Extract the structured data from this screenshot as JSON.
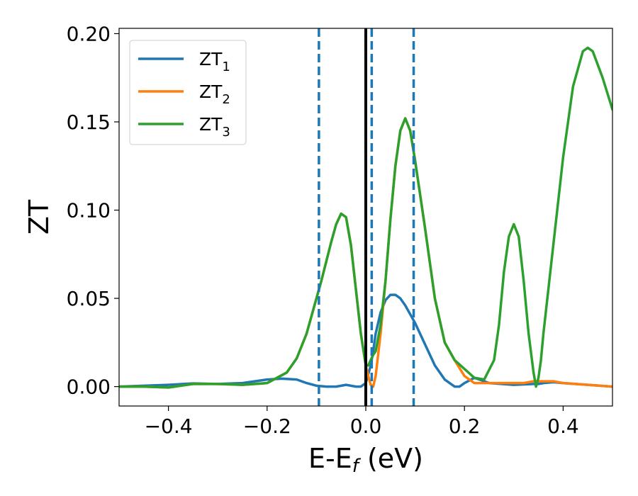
{
  "chart_data": {
    "type": "line",
    "xlabel": "E-E_f (eV)",
    "ylabel": "ZT",
    "xlim": [
      -0.5,
      0.5
    ],
    "ylim": [
      -0.011,
      0.203
    ],
    "x_ticks": [
      -0.4,
      -0.2,
      0.0,
      0.2,
      0.4
    ],
    "x_tick_labels": [
      "−0.4",
      "−0.2",
      "0.0",
      "0.2",
      "0.4"
    ],
    "y_ticks": [
      0.0,
      0.05,
      0.1,
      0.15,
      0.2
    ],
    "y_tick_labels": [
      "0.00",
      "0.05",
      "0.10",
      "0.15",
      "0.20"
    ],
    "grid": false,
    "legend_position": "upper-left",
    "series": [
      {
        "name": "ZT_1",
        "label_main": "ZT",
        "label_sub": "1",
        "color": "#1f77b4",
        "x": [
          -0.5,
          -0.45,
          -0.4,
          -0.35,
          -0.3,
          -0.25,
          -0.2,
          -0.17,
          -0.14,
          -0.12,
          -0.1,
          -0.08,
          -0.06,
          -0.04,
          -0.02,
          -0.01,
          0.0,
          0.005,
          0.01,
          0.015,
          0.02,
          0.03,
          0.04,
          0.05,
          0.06,
          0.07,
          0.08,
          0.1,
          0.12,
          0.14,
          0.16,
          0.18,
          0.19,
          0.2,
          0.22,
          0.25,
          0.3,
          0.34,
          0.35,
          0.36,
          0.38,
          0.4,
          0.45,
          0.5
        ],
        "y": [
          0.0,
          0.0005,
          0.001,
          0.0018,
          0.0015,
          0.002,
          0.004,
          0.0045,
          0.004,
          0.002,
          0.0005,
          0.0,
          0.0,
          0.001,
          0.0,
          0.0,
          0.002,
          0.007,
          0.012,
          0.02,
          0.03,
          0.042,
          0.049,
          0.052,
          0.052,
          0.05,
          0.046,
          0.036,
          0.024,
          0.012,
          0.004,
          0.0,
          0.0,
          0.002,
          0.005,
          0.002,
          0.001,
          0.0015,
          0.0015,
          0.002,
          0.0025,
          0.002,
          0.001,
          0.0
        ]
      },
      {
        "name": "ZT_2",
        "label_main": "ZT",
        "label_sub": "2",
        "color": "#ff7f0e",
        "x": [
          -0.5,
          -0.45,
          -0.4,
          -0.35,
          -0.3,
          -0.25,
          -0.2,
          -0.18,
          -0.16,
          -0.14,
          -0.12,
          -0.1,
          -0.09,
          -0.08,
          -0.07,
          -0.06,
          -0.05,
          -0.04,
          -0.03,
          -0.02,
          -0.01,
          0.0,
          0.005,
          0.01,
          0.015,
          0.02,
          0.03,
          0.04,
          0.05,
          0.06,
          0.07,
          0.08,
          0.09,
          0.1,
          0.12,
          0.14,
          0.16,
          0.18,
          0.2,
          0.22,
          0.24,
          0.26,
          0.28,
          0.3,
          0.32,
          0.34,
          0.345,
          0.35,
          0.355,
          0.36,
          0.38,
          0.4,
          0.45,
          0.5
        ],
        "y": [
          0.0,
          0.0,
          -0.0005,
          0.0015,
          0.0015,
          0.001,
          0.002,
          0.005,
          0.008,
          0.016,
          0.03,
          0.05,
          0.06,
          0.071,
          0.082,
          0.092,
          0.098,
          0.096,
          0.08,
          0.055,
          0.03,
          0.012,
          0.006,
          0.001,
          0.0,
          0.006,
          0.03,
          0.06,
          0.095,
          0.125,
          0.145,
          0.152,
          0.145,
          0.128,
          0.09,
          0.05,
          0.025,
          0.015,
          0.006,
          0.002,
          0.002,
          0.002,
          0.002,
          0.002,
          0.002,
          0.003,
          0.003,
          0.003,
          0.003,
          0.003,
          0.003,
          0.002,
          0.001,
          0.0
        ]
      },
      {
        "name": "ZT_3",
        "label_main": "ZT",
        "label_sub": "3",
        "color": "#2ca02c",
        "x": [
          -0.5,
          -0.45,
          -0.4,
          -0.35,
          -0.3,
          -0.25,
          -0.2,
          -0.18,
          -0.16,
          -0.14,
          -0.12,
          -0.1,
          -0.09,
          -0.08,
          -0.07,
          -0.06,
          -0.05,
          -0.04,
          -0.03,
          -0.02,
          -0.01,
          0.0,
          0.005,
          0.01,
          0.015,
          0.02,
          0.03,
          0.04,
          0.05,
          0.06,
          0.07,
          0.08,
          0.09,
          0.1,
          0.12,
          0.14,
          0.16,
          0.18,
          0.2,
          0.22,
          0.24,
          0.26,
          0.27,
          0.28,
          0.29,
          0.3,
          0.31,
          0.32,
          0.33,
          0.34,
          0.345,
          0.35,
          0.355,
          0.36,
          0.38,
          0.4,
          0.42,
          0.44,
          0.45,
          0.46,
          0.48,
          0.5
        ],
        "y": [
          0.0,
          0.0,
          -0.0005,
          0.0015,
          0.0015,
          0.001,
          0.002,
          0.005,
          0.008,
          0.016,
          0.03,
          0.05,
          0.06,
          0.071,
          0.082,
          0.092,
          0.098,
          0.096,
          0.08,
          0.055,
          0.03,
          0.012,
          0.012,
          0.015,
          0.018,
          0.02,
          0.035,
          0.06,
          0.095,
          0.125,
          0.145,
          0.152,
          0.145,
          0.128,
          0.09,
          0.05,
          0.025,
          0.015,
          0.01,
          0.005,
          0.004,
          0.015,
          0.035,
          0.065,
          0.085,
          0.092,
          0.085,
          0.06,
          0.03,
          0.008,
          0.0,
          0.005,
          0.015,
          0.03,
          0.08,
          0.13,
          0.17,
          0.19,
          0.192,
          0.19,
          0.175,
          0.157
        ]
      }
    ],
    "vertical_lines": [
      {
        "x": 0.0,
        "color": "#000000",
        "style": "solid"
      },
      {
        "x": -0.095,
        "color": "#1f77b4",
        "style": "dashed"
      },
      {
        "x": 0.012,
        "color": "#1f77b4",
        "style": "dashed"
      },
      {
        "x": 0.097,
        "color": "#1f77b4",
        "style": "dashed"
      }
    ]
  }
}
